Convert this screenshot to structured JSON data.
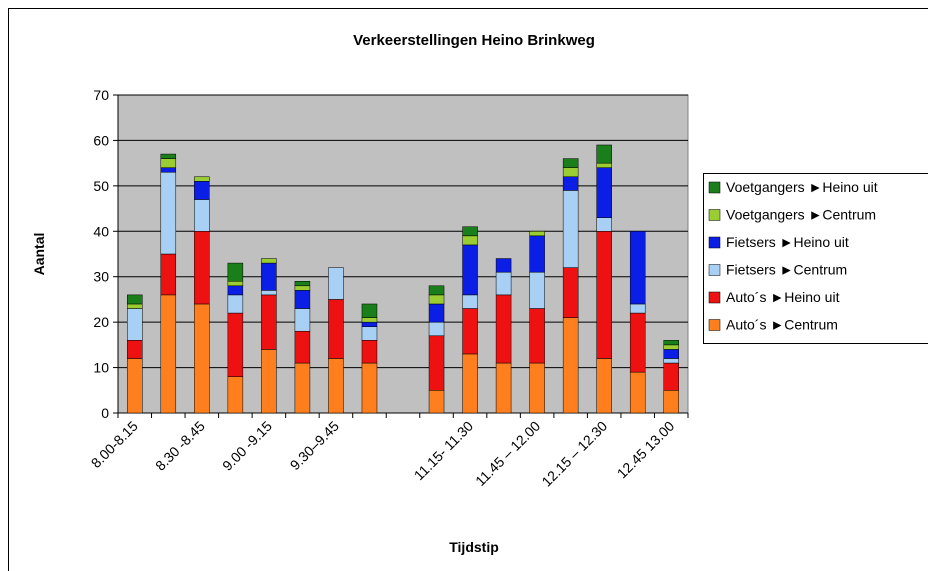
{
  "chart_data": {
    "type": "stacked_bar",
    "title": "Verkeerstellingen Heino Brinkweg",
    "x_label": "Tijdstip",
    "y_label": "Aantal",
    "categories": [
      "8.00-8.15",
      null,
      "8.30 -8.45",
      null,
      "9.00 -9.15",
      null,
      "9.30–9.45",
      null,
      null,
      null,
      "11.15- 11.30",
      null,
      "11.45 – 12.00",
      null,
      "12.15 – 12.30",
      null,
      "12.45 13.00"
    ],
    "series": [
      {
        "name": "Auto´s ►Centrum",
        "color": "#ff7f1e",
        "values": [
          12,
          26,
          24,
          8,
          14,
          11,
          12,
          11,
          null,
          5,
          13,
          11,
          11,
          21,
          12,
          9,
          5
        ]
      },
      {
        "name": "Auto´s ►Heino uit",
        "color": "#ee1111",
        "values": [
          4,
          9,
          16,
          14,
          12,
          7,
          13,
          5,
          null,
          12,
          10,
          15,
          12,
          11,
          28,
          13,
          6
        ]
      },
      {
        "name": "Fietsers ►Centrum",
        "color": "#a8d0f5",
        "values": [
          7,
          18,
          7,
          4,
          1,
          5,
          7,
          3,
          null,
          3,
          3,
          5,
          8,
          17,
          3,
          2,
          1
        ]
      },
      {
        "name": "Fietsers ►Heino uit",
        "color": "#0a1ee6",
        "values": [
          0,
          1,
          4,
          2,
          6,
          4,
          0,
          1,
          null,
          4,
          11,
          3,
          8,
          3,
          11,
          16,
          2
        ]
      },
      {
        "name": "Voetgangers ►Centrum",
        "color": "#9acd32",
        "values": [
          1,
          2,
          1,
          1,
          1,
          1,
          0,
          1,
          null,
          2,
          2,
          0,
          1,
          2,
          1,
          0,
          1
        ]
      },
      {
        "name": "Voetgangers ►Heino uit",
        "color": "#1a7f1a",
        "values": [
          2,
          1,
          0,
          4,
          0,
          1,
          0,
          3,
          null,
          2,
          2,
          0,
          0,
          2,
          4,
          0,
          1
        ]
      }
    ],
    "ylim": [
      0,
      70
    ],
    "yticks": [
      0,
      10,
      20,
      30,
      40,
      50,
      60,
      70
    ],
    "grid": true,
    "legend": "right"
  }
}
